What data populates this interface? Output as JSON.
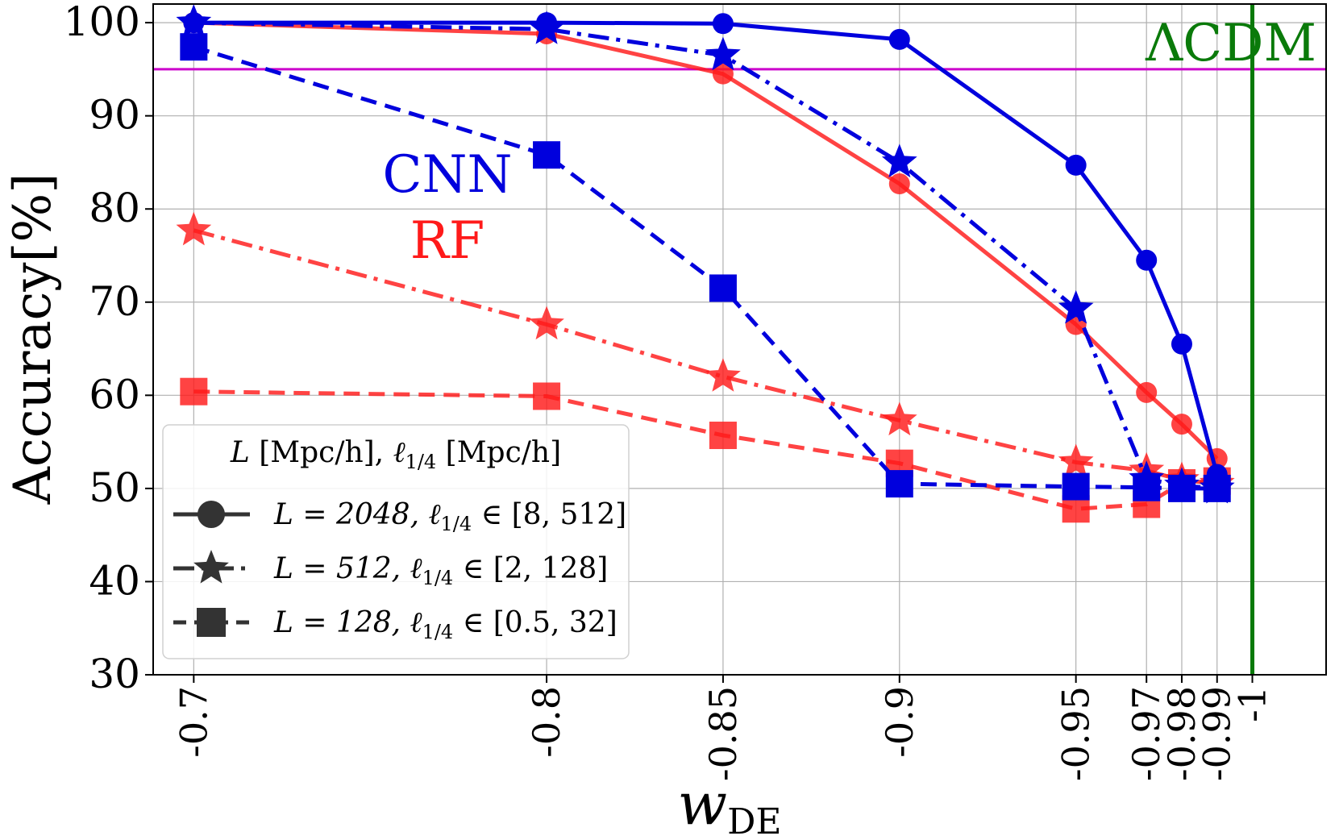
{
  "chart_data": {
    "type": "line",
    "x_categories": [
      "-0.7",
      "-0.8",
      "-0.85",
      "-0.9",
      "-0.95",
      "-0.97",
      "-0.98",
      "-0.99",
      "-1"
    ],
    "x_values": [
      -0.7,
      -0.8,
      -0.85,
      -0.9,
      -0.95,
      -0.97,
      -0.98,
      -0.99
    ],
    "xlabel": "w",
    "xlabel_sub": "DE",
    "ylabel": "Accuracy[%]",
    "ylim": [
      30,
      102
    ],
    "yticks": [
      "30",
      "40",
      "50",
      "60",
      "70",
      "80",
      "90",
      "100"
    ],
    "grid": true,
    "reference_lines": {
      "horizontal": {
        "y": 95,
        "color": "#cc00cc"
      },
      "vertical": {
        "x": -1,
        "color": "#0a7a0a",
        "label": "ΛCDM"
      }
    },
    "annotations": [
      {
        "text": "CNN",
        "color": "#0000dd"
      },
      {
        "text": "RF",
        "color": "#ff1a1a"
      }
    ],
    "series": [
      {
        "name": "CNN, L = 2048",
        "group": "CNN",
        "marker": "circle",
        "style": "solid",
        "color": "#0000dd",
        "values": [
          100,
          100,
          99.9,
          98.2,
          84.7,
          74.5,
          65.5,
          51.5
        ]
      },
      {
        "name": "CNN, L = 512",
        "group": "CNN",
        "marker": "star",
        "style": "dashdot",
        "color": "#0000dd",
        "values": [
          100,
          99.3,
          96.5,
          85.0,
          69.3,
          51.0,
          50.3,
          50.0
        ]
      },
      {
        "name": "CNN, L = 128",
        "group": "CNN",
        "marker": "square",
        "style": "dashed",
        "color": "#0000dd",
        "values": [
          97.4,
          85.8,
          71.5,
          50.5,
          50.2,
          50.1,
          50.0,
          50.0
        ]
      },
      {
        "name": "RF, L = 2048",
        "group": "RF",
        "marker": "circle",
        "style": "solid",
        "color": "#ff1a1a",
        "values": [
          100,
          98.8,
          94.5,
          82.7,
          67.6,
          60.3,
          56.9,
          53.2
        ]
      },
      {
        "name": "RF, L = 512",
        "group": "RF",
        "marker": "star",
        "style": "dashdot",
        "color": "#ff1a1a",
        "values": [
          77.7,
          67.6,
          62.0,
          57.3,
          52.8,
          51.9,
          50.9,
          50.5
        ]
      },
      {
        "name": "RF, L = 128",
        "group": "RF",
        "marker": "square",
        "style": "dashed",
        "color": "#ff1a1a",
        "values": [
          60.4,
          59.9,
          55.7,
          52.7,
          47.8,
          48.3,
          50.6,
          50.8
        ]
      }
    ],
    "legend": {
      "title_L": "L",
      "title_unit1": " [Mpc/h], ",
      "title_ell": "ℓ",
      "title_ell_sub": "1/4",
      "title_unit2": " [Mpc/h]",
      "placement": "lower-left",
      "entries": [
        {
          "marker": "circle",
          "style": "solid",
          "text_a": "L = 2048, ℓ",
          "sub": "1/4",
          "text_b": " ∈ [8, 512]"
        },
        {
          "marker": "star",
          "style": "dashdot",
          "text_a": "L = 512, ℓ",
          "sub": "1/4",
          "text_b": " ∈ [2, 128]"
        },
        {
          "marker": "square",
          "style": "dashed",
          "text_a": "L = 128, ℓ",
          "sub": "1/4",
          "text_b": " ∈ [0.5, 32]"
        }
      ]
    }
  }
}
